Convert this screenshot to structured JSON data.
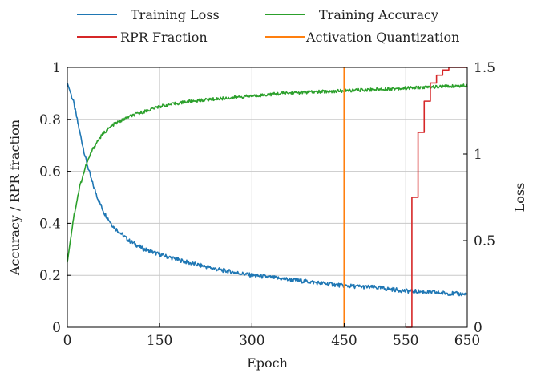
{
  "chart_data": {
    "type": "line",
    "xlabel": "Epoch",
    "ylabel_left": "Accuracy / RPR fraction",
    "ylabel_right": "Loss",
    "xlim": [
      0,
      650
    ],
    "ylim_left": [
      0,
      1
    ],
    "ylim_right": [
      0,
      1.5
    ],
    "x_ticks": [
      0,
      150,
      300,
      450,
      550,
      650
    ],
    "y_ticks_left": [
      0,
      0.2,
      0.4,
      0.6,
      0.8,
      1
    ],
    "y_ticks_right": [
      0,
      0.5,
      1,
      1.5
    ],
    "grid": true,
    "legend_position": "top",
    "series": [
      {
        "name": "Training Loss",
        "axis": "right",
        "color": "#1f77b4",
        "x": [
          0,
          10,
          20,
          30,
          40,
          50,
          60,
          75,
          100,
          125,
          150,
          200,
          250,
          300,
          350,
          400,
          450,
          500,
          550,
          600,
          650
        ],
        "y": [
          1.41,
          1.3,
          1.13,
          0.97,
          0.84,
          0.74,
          0.66,
          0.58,
          0.5,
          0.45,
          0.42,
          0.37,
          0.33,
          0.3,
          0.28,
          0.26,
          0.24,
          0.23,
          0.21,
          0.2,
          0.19
        ]
      },
      {
        "name": "Training Accuracy",
        "axis": "left",
        "color": "#2ca02c",
        "x": [
          0,
          10,
          20,
          30,
          40,
          50,
          60,
          75,
          100,
          125,
          150,
          200,
          250,
          300,
          350,
          400,
          450,
          500,
          550,
          600,
          650
        ],
        "y": [
          0.25,
          0.42,
          0.54,
          0.62,
          0.68,
          0.72,
          0.75,
          0.78,
          0.81,
          0.83,
          0.85,
          0.87,
          0.88,
          0.89,
          0.9,
          0.905,
          0.91,
          0.915,
          0.92,
          0.925,
          0.93
        ]
      },
      {
        "name": "RPR Fraction",
        "axis": "left",
        "color": "#d62728",
        "step": true,
        "x": [
          550,
          560,
          570,
          580,
          590,
          600,
          610,
          620,
          650
        ],
        "y": [
          0,
          0.5,
          0.75,
          0.87,
          0.94,
          0.97,
          0.99,
          1.0,
          1.0
        ]
      },
      {
        "name": "Activation Quantization",
        "axis": "left",
        "color": "#ff7f0e",
        "vertical": true,
        "x": [
          450,
          450
        ],
        "y": [
          0,
          1
        ]
      }
    ]
  }
}
